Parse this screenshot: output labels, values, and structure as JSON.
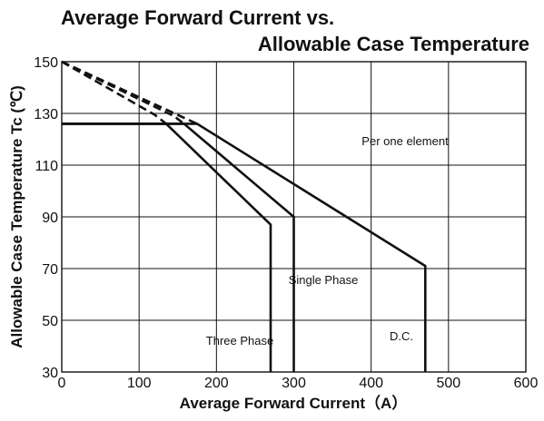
{
  "chart_data": {
    "type": "line",
    "title_line1": "Average Forward Current vs.",
    "title_line2": "Allowable Case Temperature",
    "xlabel": "Average Forward Current（A）",
    "ylabel": "Allowable Case Temperature Tc (℃)",
    "xlim": [
      0,
      600
    ],
    "ylim": [
      30,
      150
    ],
    "xticks": [
      "0",
      "100",
      "200",
      "300",
      "400",
      "500",
      "600"
    ],
    "yticks": [
      "30",
      "50",
      "70",
      "90",
      "110",
      "130",
      "150"
    ],
    "grid": true,
    "series": [
      {
        "name": "Three Phase",
        "dashed": [
          [
            0,
            150
          ],
          [
            120,
            129.5
          ],
          [
            135,
            126
          ]
        ],
        "solid": [
          [
            0,
            126
          ],
          [
            135,
            126
          ],
          [
            270,
            87
          ],
          [
            270,
            30
          ]
        ]
      },
      {
        "name": "Single Phase",
        "dashed": [
          [
            0,
            150
          ],
          [
            145,
            129
          ],
          [
            158,
            126
          ]
        ],
        "solid": [
          [
            0,
            126
          ],
          [
            158,
            126
          ],
          [
            300,
            90
          ],
          [
            300,
            30
          ]
        ]
      },
      {
        "name": "D.C.",
        "dashed": [
          [
            0,
            150
          ],
          [
            175,
            126
          ]
        ],
        "solid": [
          [
            0,
            126
          ],
          [
            175,
            126
          ],
          [
            470,
            71
          ],
          [
            470,
            30
          ]
        ]
      }
    ],
    "annotations": {
      "per_one_element": "Per one element",
      "single_phase": "Single Phase",
      "three_phase": "Three Phase",
      "dc": "D.C."
    }
  }
}
